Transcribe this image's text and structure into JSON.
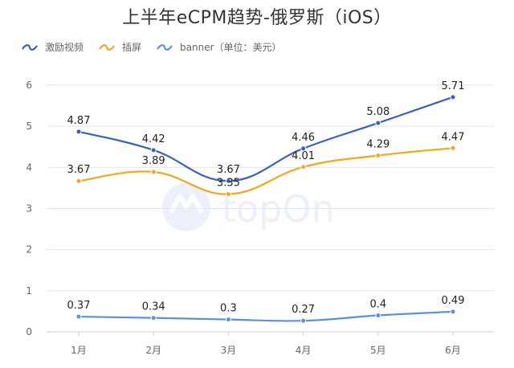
{
  "title": "上半年eCPM趋势-俄罗斯（iOS）",
  "legend_note": "（单位：美元）",
  "watermark": "topOn",
  "chart_data": {
    "type": "line",
    "title": "上半年eCPM趋势-俄罗斯（iOS）",
    "categories": [
      "1月",
      "2月",
      "3月",
      "4月",
      "5月",
      "6月"
    ],
    "ylim": [
      0,
      6
    ],
    "yticks": [
      0,
      1,
      2,
      3,
      4,
      5,
      6
    ],
    "grid": true,
    "legend_position": "top-left",
    "series": [
      {
        "name": "激励视频",
        "color": "#3a5fc4",
        "values": [
          4.87,
          4.42,
          3.67,
          4.46,
          5.08,
          5.71
        ],
        "labels": [
          "4.87",
          "4.42",
          "3.67",
          "4.46",
          "5.08",
          "5.71"
        ]
      },
      {
        "name": "插屏",
        "color": "#f2a623",
        "values": [
          3.67,
          3.89,
          3.35,
          4.01,
          4.29,
          4.47
        ],
        "labels": [
          "3.67",
          "3.89",
          "3.35",
          "4.01",
          "4.29",
          "4.47"
        ]
      },
      {
        "name": "banner",
        "color": "#5b8fe0",
        "values": [
          0.37,
          0.34,
          0.3,
          0.27,
          0.4,
          0.49
        ],
        "labels": [
          "0.37",
          "0.34",
          "0.3",
          "0.27",
          "0.4",
          "0.49"
        ]
      }
    ]
  }
}
